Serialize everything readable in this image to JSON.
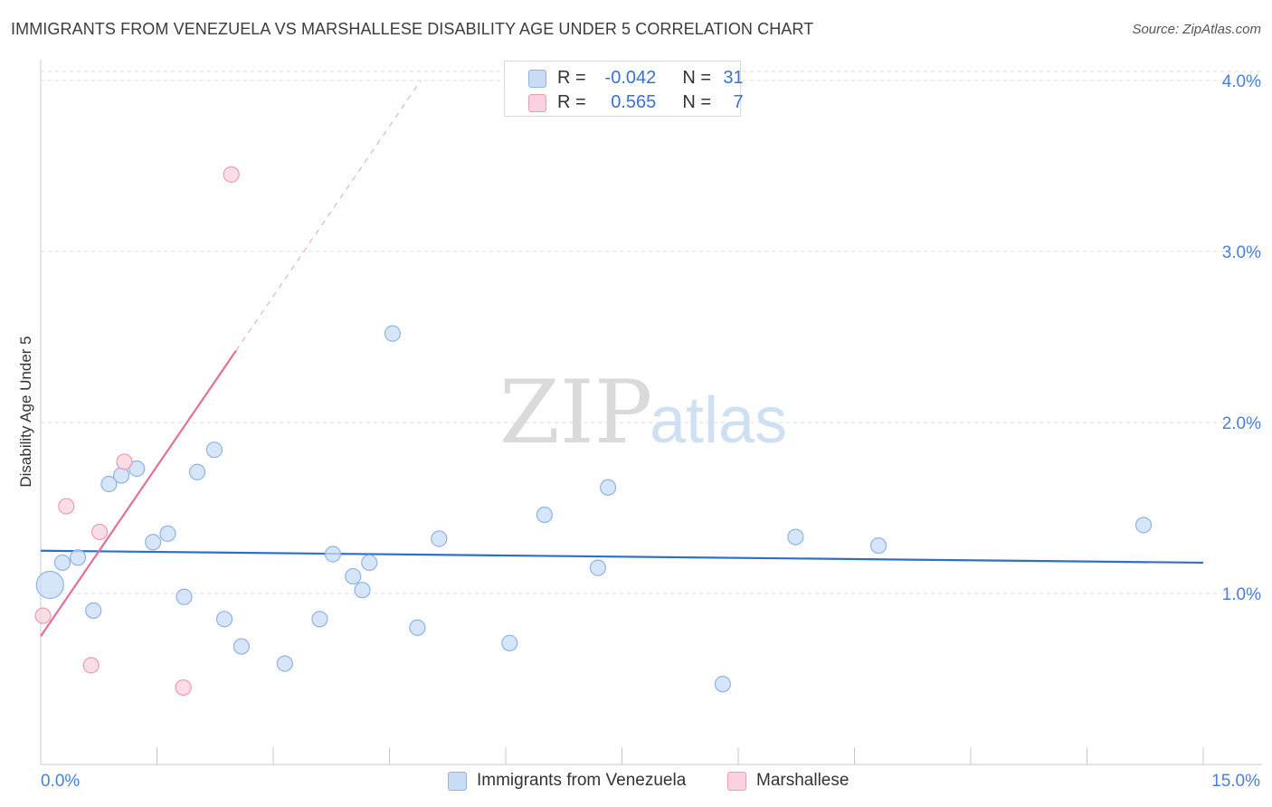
{
  "header": {
    "title": "IMMIGRANTS FROM VENEZUELA VS MARSHALLESE DISABILITY AGE UNDER 5 CORRELATION CHART",
    "source": "Source: ZipAtlas.com"
  },
  "legend": {
    "rows": [
      {
        "r_label": "R =",
        "r_value": "-0.042",
        "n_label": "N =",
        "n_value": "31"
      },
      {
        "r_label": "R =",
        "r_value": "0.565",
        "n_label": "N =",
        "n_value": "7"
      }
    ]
  },
  "bottom_legend": {
    "series1": "Immigrants from Venezuela",
    "series2": "Marshallese"
  },
  "watermark": {
    "zip": "ZIP",
    "atlas": "atlas"
  },
  "colors": {
    "blue_fill": "#c9dcf5",
    "blue_stroke": "#8fb3e6",
    "blue_line": "#2f6fcc",
    "pink_fill": "#f9d2dd",
    "pink_stroke": "#ee9ab3",
    "pink_line": "#e07097",
    "tick_text": "#4a7fd4",
    "grid": "#dddddd"
  },
  "chart_data": {
    "type": "scatter",
    "title": "IMMIGRANTS FROM VENEZUELA VS MARSHALLESE DISABILITY AGE UNDER 5 CORRELATION CHART",
    "xlabel": "",
    "ylabel": "Disability Age Under 5",
    "xlim": [
      0,
      15
    ],
    "ylim": [
      0,
      4.1
    ],
    "x_tick_labels": [
      "0.0%",
      "15.0%"
    ],
    "y_ticks": [
      1.0,
      2.0,
      3.0,
      4.0
    ],
    "y_tick_labels": [
      "1.0%",
      "2.0%",
      "3.0%",
      "4.0%"
    ],
    "grid": true,
    "legend_position": "top-center",
    "series": [
      {
        "name": "Immigrants from Venezuela",
        "color": "#8fb3e6",
        "points": [
          {
            "x": 0.12,
            "y": 1.05,
            "size": "large"
          },
          {
            "x": 0.28,
            "y": 1.18
          },
          {
            "x": 0.48,
            "y": 1.21
          },
          {
            "x": 0.68,
            "y": 0.9
          },
          {
            "x": 0.88,
            "y": 1.64
          },
          {
            "x": 1.04,
            "y": 1.69
          },
          {
            "x": 1.24,
            "y": 1.73
          },
          {
            "x": 1.45,
            "y": 1.3
          },
          {
            "x": 1.64,
            "y": 1.35
          },
          {
            "x": 1.85,
            "y": 0.98
          },
          {
            "x": 2.02,
            "y": 1.71
          },
          {
            "x": 2.24,
            "y": 1.84
          },
          {
            "x": 2.37,
            "y": 0.85
          },
          {
            "x": 2.59,
            "y": 0.69
          },
          {
            "x": 3.15,
            "y": 0.59
          },
          {
            "x": 3.6,
            "y": 0.85
          },
          {
            "x": 3.77,
            "y": 1.23
          },
          {
            "x": 4.03,
            "y": 1.1
          },
          {
            "x": 4.15,
            "y": 1.02
          },
          {
            "x": 4.24,
            "y": 1.18
          },
          {
            "x": 4.54,
            "y": 2.52
          },
          {
            "x": 4.86,
            "y": 0.8
          },
          {
            "x": 5.14,
            "y": 1.32
          },
          {
            "x": 6.05,
            "y": 0.71
          },
          {
            "x": 6.5,
            "y": 1.46
          },
          {
            "x": 7.19,
            "y": 1.15
          },
          {
            "x": 7.32,
            "y": 1.62
          },
          {
            "x": 8.8,
            "y": 0.47
          },
          {
            "x": 9.74,
            "y": 1.33
          },
          {
            "x": 10.81,
            "y": 1.28
          },
          {
            "x": 14.23,
            "y": 1.4
          }
        ],
        "trend": {
          "x0": 0,
          "y0": 1.25,
          "x1": 15,
          "y1": 1.18
        }
      },
      {
        "name": "Marshallese",
        "color": "#ee9ab3",
        "points": [
          {
            "x": 0.03,
            "y": 0.87
          },
          {
            "x": 0.33,
            "y": 1.51
          },
          {
            "x": 0.65,
            "y": 0.58
          },
          {
            "x": 0.76,
            "y": 1.36
          },
          {
            "x": 1.08,
            "y": 1.77
          },
          {
            "x": 1.84,
            "y": 0.45
          },
          {
            "x": 2.46,
            "y": 3.45
          }
        ],
        "trend": {
          "x0": 0,
          "y0": 0.75,
          "x1": 2.52,
          "y1": 2.42,
          "x_dash_end": 4.9
        }
      }
    ]
  }
}
